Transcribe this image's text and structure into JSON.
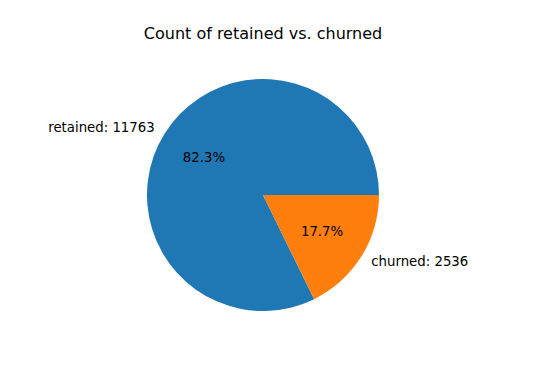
{
  "chart_data": {
    "type": "pie",
    "title": "Count of retained vs. churned",
    "categories": [
      "retained: 11763",
      "churned: 2536"
    ],
    "values": [
      11763,
      2536
    ],
    "percentage_labels": [
      "82.3%",
      "17.7%"
    ],
    "colors": [
      "#1f77b4",
      "#ff7f0e"
    ]
  }
}
